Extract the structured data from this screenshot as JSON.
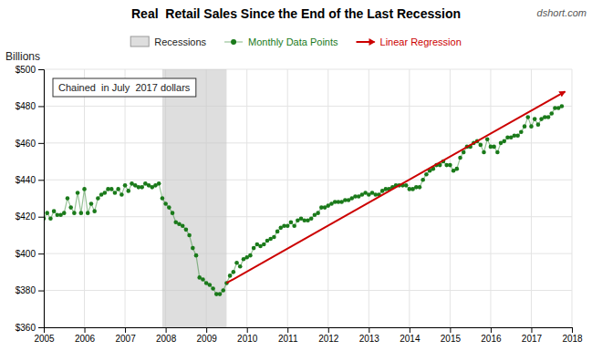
{
  "chart_data": {
    "type": "line",
    "title": "Real  Retail Sales Since the End of the Last Recession",
    "ylabel": "Billions",
    "annotations": [
      "Chained  in July  2017 dollars",
      "dshort.com"
    ],
    "xlim": [
      2005.0,
      2018.0
    ],
    "xticks": [
      2005,
      2006,
      2007,
      2008,
      2009,
      2010,
      2011,
      2012,
      2013,
      2014,
      2015,
      2016,
      2017,
      2018
    ],
    "ylim": [
      360,
      500
    ],
    "yticks": [
      {
        "value": 360,
        "label": "$360"
      },
      {
        "value": 380,
        "label": "$380"
      },
      {
        "value": 400,
        "label": "$400"
      },
      {
        "value": 420,
        "label": "$420"
      },
      {
        "value": 440,
        "label": "$440"
      },
      {
        "value": 460,
        "label": "$460"
      },
      {
        "value": 480,
        "label": "$480"
      },
      {
        "value": 500,
        "label": "$500"
      }
    ],
    "grid": true,
    "series": [
      {
        "name": "Recessions",
        "type": "span",
        "color": "#c8c8c8",
        "x": [
          2007.917,
          2009.5
        ]
      },
      {
        "name": "Monthly Data Points",
        "type": "line",
        "marker": "circle",
        "color": "#1a7a1a",
        "x": [
          2005.0,
          2005.083,
          2005.167,
          2005.25,
          2005.333,
          2005.417,
          2005.5,
          2005.583,
          2005.667,
          2005.75,
          2005.833,
          2005.917,
          2006.0,
          2006.083,
          2006.167,
          2006.25,
          2006.333,
          2006.417,
          2006.5,
          2006.583,
          2006.667,
          2006.75,
          2006.833,
          2006.917,
          2007.0,
          2007.083,
          2007.167,
          2007.25,
          2007.333,
          2007.417,
          2007.5,
          2007.583,
          2007.667,
          2007.75,
          2007.833,
          2007.917,
          2008.0,
          2008.083,
          2008.167,
          2008.25,
          2008.333,
          2008.417,
          2008.5,
          2008.583,
          2008.667,
          2008.75,
          2008.833,
          2008.917,
          2009.0,
          2009.083,
          2009.167,
          2009.25,
          2009.333,
          2009.417,
          2009.5,
          2009.583,
          2009.667,
          2009.75,
          2009.833,
          2009.917,
          2010.0,
          2010.083,
          2010.167,
          2010.25,
          2010.333,
          2010.417,
          2010.5,
          2010.583,
          2010.667,
          2010.75,
          2010.833,
          2010.917,
          2011.0,
          2011.083,
          2011.167,
          2011.25,
          2011.333,
          2011.417,
          2011.5,
          2011.583,
          2011.667,
          2011.75,
          2011.833,
          2011.917,
          2012.0,
          2012.083,
          2012.167,
          2012.25,
          2012.333,
          2012.417,
          2012.5,
          2012.583,
          2012.667,
          2012.75,
          2012.833,
          2012.917,
          2013.0,
          2013.083,
          2013.167,
          2013.25,
          2013.333,
          2013.417,
          2013.5,
          2013.583,
          2013.667,
          2013.75,
          2013.833,
          2013.917,
          2014.0,
          2014.083,
          2014.167,
          2014.25,
          2014.333,
          2014.417,
          2014.5,
          2014.583,
          2014.667,
          2014.75,
          2014.833,
          2014.917,
          2015.0,
          2015.083,
          2015.167,
          2015.25,
          2015.333,
          2015.417,
          2015.5,
          2015.583,
          2015.667,
          2015.75,
          2015.833,
          2015.917,
          2016.0,
          2016.083,
          2016.167,
          2016.25,
          2016.333,
          2016.417,
          2016.5,
          2016.583,
          2016.667,
          2016.75,
          2016.833,
          2016.917,
          2017.0,
          2017.083,
          2017.167,
          2017.25,
          2017.333,
          2017.417,
          2017.5,
          2017.583,
          2017.667,
          2017.75
        ],
        "values": [
          419,
          422,
          419,
          423,
          421,
          421,
          422,
          430,
          425,
          422,
          433,
          422,
          435,
          422,
          427,
          423,
          430,
          432,
          433,
          435,
          435,
          433,
          435,
          432,
          437,
          434,
          438,
          437,
          436,
          436,
          438,
          437,
          436,
          437,
          438,
          430,
          427,
          425,
          422,
          417,
          416,
          415,
          413,
          410,
          403,
          399,
          387,
          386,
          384,
          383,
          381,
          378,
          378,
          380,
          384,
          388,
          390,
          395,
          393,
          397,
          398,
          399,
          403,
          405,
          404,
          405,
          407,
          408,
          409,
          412,
          414,
          415,
          415,
          417,
          415,
          418,
          419,
          418,
          418,
          419,
          421,
          422,
          425,
          425,
          426,
          427,
          428,
          428,
          428,
          429,
          429,
          430,
          431,
          431,
          432,
          433,
          432,
          433,
          432,
          432,
          434,
          435,
          435,
          436,
          437,
          437,
          437,
          437,
          435,
          435,
          436,
          436,
          440,
          443,
          445,
          446,
          448,
          448,
          450,
          448,
          448,
          445,
          446,
          452,
          455,
          458,
          458,
          460,
          461,
          459,
          455,
          462,
          458,
          458,
          455,
          460,
          461,
          463,
          463,
          464,
          464,
          466,
          469,
          474,
          469,
          473,
          470,
          473,
          474,
          474,
          476,
          479,
          479,
          480
        ]
      },
      {
        "name": "Linear Regression",
        "type": "line",
        "marker": "arrow",
        "color": "#cc0000",
        "x": [
          2009.5,
          2017.833
        ],
        "values": [
          384,
          488
        ]
      }
    ]
  }
}
